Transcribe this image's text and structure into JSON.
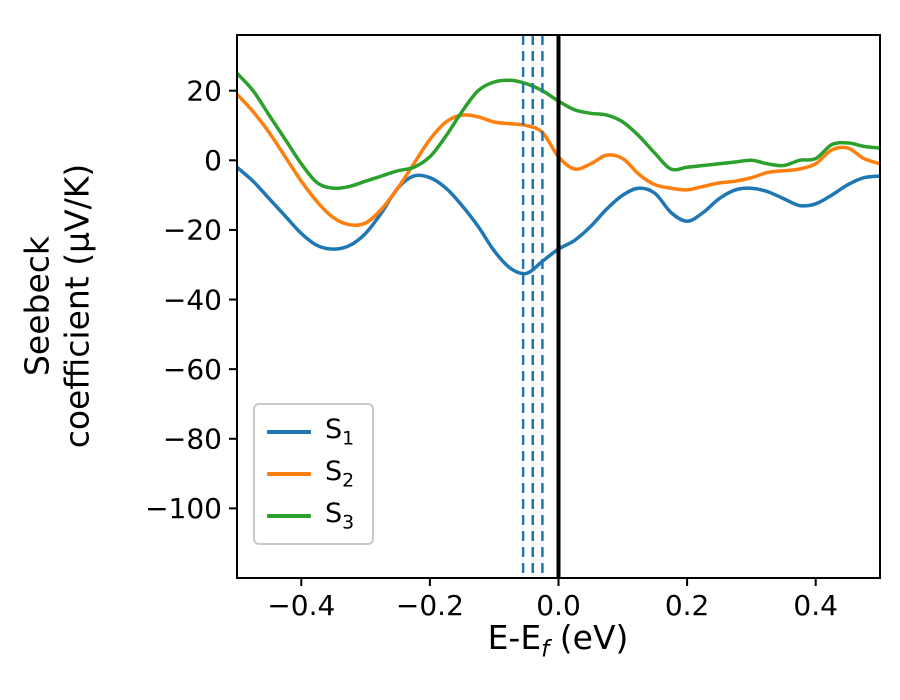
{
  "chart_data": {
    "type": "line",
    "title": "",
    "xlabel": {
      "prefix": "E-E",
      "sub": "f",
      "suffix": " (eV)"
    },
    "ylabel_lines": [
      "Seebeck",
      "coefficient (μV/K)"
    ],
    "xlim": [
      -0.5,
      0.5
    ],
    "ylim": [
      -120,
      36
    ],
    "grid": false,
    "legend_position": "lower left",
    "x_ticks": [
      -0.4,
      -0.2,
      0.0,
      0.2,
      0.4
    ],
    "x_tick_labels": [
      "−0.4",
      "−0.2",
      "0.0",
      "0.2",
      "0.4"
    ],
    "y_ticks": [
      20,
      0,
      -20,
      -40,
      -60,
      -80,
      -100
    ],
    "y_tick_labels": [
      "20",
      "0",
      "−20",
      "−40",
      "−60",
      "−80",
      "−100"
    ],
    "x": [
      -0.5,
      -0.475,
      -0.45,
      -0.425,
      -0.4,
      -0.375,
      -0.35,
      -0.325,
      -0.3,
      -0.275,
      -0.25,
      -0.225,
      -0.2,
      -0.175,
      -0.15,
      -0.125,
      -0.1,
      -0.075,
      -0.05,
      -0.025,
      0.0,
      0.025,
      0.05,
      0.075,
      0.1,
      0.125,
      0.15,
      0.175,
      0.2,
      0.225,
      0.25,
      0.275,
      0.3,
      0.325,
      0.35,
      0.375,
      0.4,
      0.425,
      0.45,
      0.475,
      0.5
    ],
    "series": [
      {
        "name": "S1",
        "label_base": "S",
        "label_sub": "1",
        "color": "#1f77b4",
        "values": [
          -2,
          -6,
          -11,
          -16,
          -21,
          -24.5,
          -25.5,
          -24.5,
          -21,
          -15,
          -8,
          -4.5,
          -5,
          -8,
          -13,
          -19,
          -26,
          -31,
          -32.5,
          -29,
          -25.5,
          -23,
          -19,
          -14,
          -10,
          -8,
          -9.5,
          -15,
          -17.5,
          -15,
          -11,
          -8.5,
          -8,
          -9,
          -11,
          -13,
          -12.5,
          -10,
          -7,
          -5,
          -4.5
        ]
      },
      {
        "name": "S2",
        "label_base": "S",
        "label_sub": "2",
        "color": "#ff7f0e",
        "values": [
          19,
          14,
          8,
          1,
          -6,
          -12,
          -16.5,
          -18.5,
          -18,
          -14,
          -8,
          -1,
          6,
          11,
          13,
          12.5,
          11,
          10.5,
          10,
          8,
          1,
          -2.5,
          -1,
          1.5,
          0.5,
          -4,
          -7,
          -8,
          -8.5,
          -7.5,
          -6.5,
          -6,
          -5,
          -3.5,
          -3,
          -2.5,
          -1,
          3,
          3.5,
          0.5,
          -1
        ]
      },
      {
        "name": "S3",
        "label_base": "S",
        "label_sub": "3",
        "color": "#2ca02c",
        "values": [
          25,
          20,
          13,
          6,
          -1,
          -6.5,
          -8,
          -7.5,
          -6,
          -4.5,
          -3,
          -2,
          1,
          7,
          14,
          20,
          22.5,
          23,
          22,
          20,
          17,
          14.5,
          13.5,
          13,
          11,
          7,
          2,
          -2.5,
          -2,
          -1.5,
          -1,
          -0.5,
          0,
          -1,
          -1.5,
          0,
          0.5,
          4.5,
          5,
          4,
          3.5
        ]
      }
    ],
    "vlines": {
      "solid": {
        "x": 0.0,
        "color": "#000000",
        "width": 4
      },
      "dashed": {
        "xs": [
          -0.055,
          -0.04,
          -0.025
        ],
        "color": "#1f77b4",
        "width": 2.5,
        "style": "dashed"
      }
    }
  }
}
